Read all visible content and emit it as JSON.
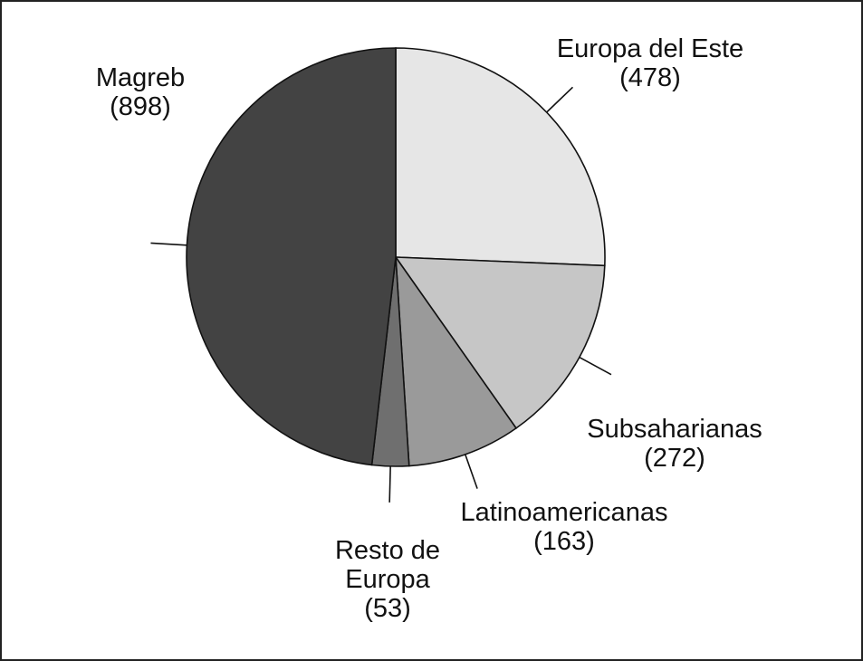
{
  "chart_data": {
    "type": "pie",
    "categories": [
      "Europa del Este",
      "Subsaharianas",
      "Latinoamericanas",
      "Resto de Europa",
      "Magreb"
    ],
    "values": [
      478,
      272,
      163,
      53,
      898
    ],
    "value_labels": [
      "(478)",
      "(272)",
      "(163)",
      "(53)",
      "(898)"
    ],
    "colors": [
      "#e6e6e6",
      "#c6c6c6",
      "#9a9a9a",
      "#6f6f6f",
      "#434343"
    ]
  }
}
